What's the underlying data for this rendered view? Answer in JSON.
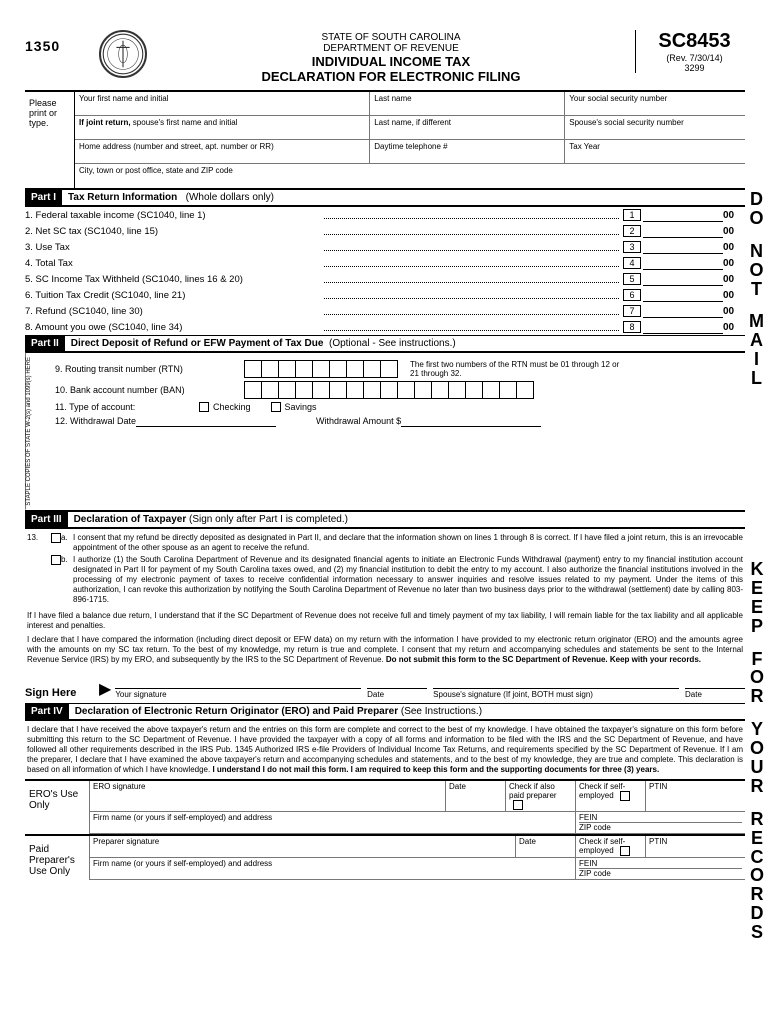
{
  "header": {
    "form_num_top": "1350",
    "state": "STATE OF SOUTH CAROLINA",
    "dept": "DEPARTMENT OF REVENUE",
    "title1": "INDIVIDUAL INCOME TAX",
    "title2": "DECLARATION FOR ELECTRONIC FILING",
    "form_code": "SC8453",
    "rev": "(Rev. 7/30/14)",
    "code": "3299"
  },
  "tp": {
    "please": "Please print or type.",
    "r1a": "Your first name and initial",
    "r1b": "Last name",
    "r1c": "Your social security number",
    "r2a": "If joint return, spouse's first name and initial",
    "r2b": "Last name, if different",
    "r2c": "Spouse's social security number",
    "r3a": "Home address (number and street, apt. number or RR)",
    "r3b": "Daytime telephone #",
    "r3c": "Tax Year",
    "r4a": "City, town or post office, state and ZIP code"
  },
  "part1": {
    "bar": "Part I",
    "title": "Tax Return Information",
    "sub": "(Whole dollars only)",
    "lines": [
      {
        "n": "1",
        "t": "1. Federal taxable income (SC1040, line 1)"
      },
      {
        "n": "2",
        "t": "2. Net SC tax (SC1040, line 15)"
      },
      {
        "n": "3",
        "t": "3. Use Tax"
      },
      {
        "n": "4",
        "t": "4. Total Tax"
      },
      {
        "n": "5",
        "t": "5. SC Income Tax Withheld (SC1040, lines 16 & 20)"
      },
      {
        "n": "6",
        "t": "6. Tuition Tax Credit (SC1040, line 21)"
      },
      {
        "n": "7",
        "t": "7. Refund (SC1040, line 30)"
      },
      {
        "n": "8",
        "t": "8. Amount you owe (SC1040, line 34)"
      }
    ],
    "zeros": "00"
  },
  "part2": {
    "bar": "Part II",
    "title": "Direct Deposit of Refund or EFW Payment of Tax Due",
    "sub": "(Optional - See instructions.)",
    "staple": "STAPLE COPIES OF STATE W-2(s) and 1099(s) HERE",
    "l9": "9. Routing transit number (RTN)",
    "l9note": "The first two numbers of the RTN must be 01 through 12 or 21 through 32.",
    "l10": "10. Bank account number (BAN)",
    "l11": "11. Type of account:",
    "l11a": "Checking",
    "l11b": "Savings",
    "l12a": "12. Withdrawal Date",
    "l12b": "Withdrawal Amount  $"
  },
  "part3": {
    "bar": "Part III",
    "title": "Declaration of Taxpayer",
    "sub": "(Sign only after Part I is completed.)",
    "n13": "13.",
    "opt_a_lbl": "a.",
    "opt_a": "I consent that my refund be directly deposited as designated in Part II, and declare that the information shown on lines 1 through 8 is correct. If I have filed a joint return, this is an irrevocable appointment of the other spouse as an agent to receive the refund.",
    "opt_b_lbl": "b.",
    "opt_b": "I authorize (1) the South Carolina Department of Revenue and its designated financial agents to initiate an Electronic Funds Withdrawal (payment) entry to my financial institution account designated in Part II for payment of my South Carolina taxes owed, and (2) my financial institution to debit the entry to my account. I also authorize the financial institutions involved in the processing of my electronic payment of taxes to receive confidential information necessary to answer inquiries and resolve issues related to my payment. Under the items of this authorization, I can revoke this authorization by notifying the South Carolina Department of Revenue no later than two business days prior to the withdrawal (settlement) date by calling 803-896-1715.",
    "para1": "If I have filed a balance due return, I understand that if the SC Department of Revenue does not receive full and timely payment of my tax liability, I will remain liable for the tax liability and all applicable interest and penalties.",
    "para2": "I declare that I have compared the information (including direct deposit or EFW data) on my return with the information I have provided to my electronic return originator (ERO) and the amounts agree with the amounts on my SC tax return. To the best of my knowledge, my return is true and complete. I consent that my return and accompanying schedules and statements be sent to the Internal Revenue Service (IRS) by my ERO, and subsequently by the IRS to the SC Department of Revenue. ",
    "para2b": "Do not submit this form to the SC Department of Revenue. Keep with your records.",
    "sign_here": "Sign Here",
    "sig1": "Your signature",
    "date": "Date",
    "sig2": "Spouse's signature (If joint, BOTH must sign)"
  },
  "part4": {
    "bar": "Part IV",
    "title": "Declaration of Electronic Return Originator (ERO) and Paid Preparer",
    "sub": "(See Instructions.)",
    "para": "I declare that I have received the above taxpayer's return and the entries on this form are complete and correct to the best of my knowledge. I have obtained the taxpayer's signature on this form before submitting this return to the SC Department of Revenue. I have provided the taxpayer with a copy of all forms and information to be filed with the IRS and the SC Department of Revenue, and have followed all other requirements described in the IRS Pub. 1345 Authorized IRS e-file Providers of Individual Income Tax Returns, and requirements specified by the SC Department of Revenue. If I am the preparer, I declare that I have examined the above taxpayer's return and accompanying schedules and statements, and to the best of my knowledge, they are true and complete. This declaration is based on all information of which I have knowledge. ",
    "parab": "I understand I do not mail this form. I am required to keep this form and the supporting documents for three (3) years.",
    "ero_use": "ERO's Use Only",
    "ero_sig": "ERO signature",
    "date": "Date",
    "chk1": "Check if also paid preparer",
    "chk2": "Check if self-employed",
    "ptin": "PTIN",
    "firm": "Firm name (or yours if self-employed) and address",
    "fein": "FEIN",
    "zip": "ZIP code",
    "paid": "Paid Preparer's Use Only",
    "prep_sig": "Preparer signature"
  },
  "margin": {
    "do_not_mail": "DO NOT MAIL",
    "keep": "KEEP FOR YOUR RECORDS"
  }
}
